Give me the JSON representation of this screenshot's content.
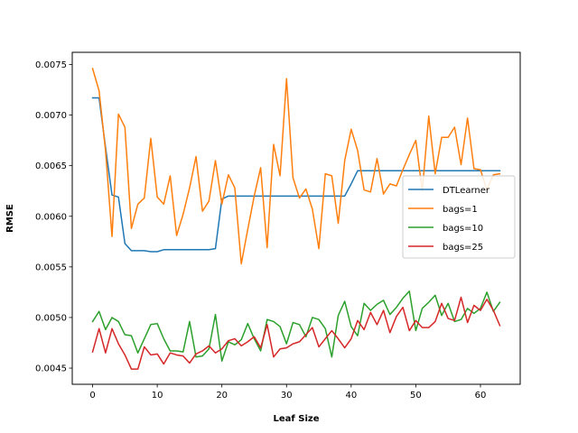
{
  "chart_data": {
    "type": "line",
    "title": "",
    "xlabel": "Leaf Size",
    "ylabel": "RMSE",
    "xlim": [
      -3.15,
      66.15
    ],
    "ylim": [
      0.00434,
      0.00762
    ],
    "xticks": [
      0,
      10,
      20,
      30,
      40,
      50,
      60
    ],
    "yticks": [
      0.0045,
      0.005,
      0.0055,
      0.006,
      0.0065,
      0.007,
      0.0075
    ],
    "ytick_labels": [
      "0.0045",
      "0.0050",
      "0.0055",
      "0.0060",
      "0.0065",
      "0.0070",
      "0.0075"
    ],
    "grid": false,
    "legend_position": "center-right",
    "x": [
      0,
      1,
      2,
      3,
      4,
      5,
      6,
      7,
      8,
      9,
      10,
      11,
      12,
      13,
      14,
      15,
      16,
      17,
      18,
      19,
      20,
      21,
      22,
      23,
      24,
      25,
      26,
      27,
      28,
      29,
      30,
      31,
      32,
      33,
      34,
      35,
      36,
      37,
      38,
      39,
      40,
      41,
      42,
      43,
      44,
      45,
      46,
      47,
      48,
      49,
      50,
      51,
      52,
      53,
      54,
      55,
      56,
      57,
      58,
      59,
      60,
      61,
      62,
      63
    ],
    "series": [
      {
        "name": "DTLearner",
        "color": "#1f77b4",
        "values": [
          0.00717,
          0.00717,
          0.00668,
          0.00621,
          0.00619,
          0.00573,
          0.00566,
          0.00566,
          0.00566,
          0.00565,
          0.00565,
          0.00567,
          0.00567,
          0.00567,
          0.00567,
          0.00567,
          0.00567,
          0.00567,
          0.00567,
          0.00568,
          0.00617,
          0.0062,
          0.0062,
          0.0062,
          0.0062,
          0.0062,
          0.0062,
          0.0062,
          0.0062,
          0.0062,
          0.0062,
          0.0062,
          0.0062,
          0.0062,
          0.0062,
          0.0062,
          0.0062,
          0.0062,
          0.0062,
          0.0062,
          0.00632,
          0.00645,
          0.00645,
          0.00645,
          0.00645,
          0.00645,
          0.00645,
          0.00645,
          0.00645,
          0.00645,
          0.00645,
          0.00645,
          0.00645,
          0.00645,
          0.00645,
          0.00645,
          0.00645,
          0.00645,
          0.00645,
          0.00645,
          0.00645,
          0.00645,
          0.00645,
          0.00645
        ]
      },
      {
        "name": "bags=1",
        "color": "#ff7f0e",
        "values": [
          0.00746,
          0.00724,
          0.00665,
          0.0058,
          0.00701,
          0.00688,
          0.00588,
          0.00612,
          0.00618,
          0.00677,
          0.00619,
          0.00612,
          0.0064,
          0.00581,
          0.00602,
          0.00628,
          0.00659,
          0.00605,
          0.00615,
          0.00655,
          0.00612,
          0.00641,
          0.00628,
          0.00553,
          0.00587,
          0.0062,
          0.00648,
          0.00569,
          0.00671,
          0.0064,
          0.00736,
          0.00638,
          0.00618,
          0.00627,
          0.00607,
          0.00568,
          0.00642,
          0.0064,
          0.00593,
          0.00655,
          0.00686,
          0.00665,
          0.00626,
          0.00624,
          0.00657,
          0.00622,
          0.00632,
          0.0063,
          0.00646,
          0.00661,
          0.00675,
          0.00625,
          0.00699,
          0.00642,
          0.00678,
          0.00678,
          0.00688,
          0.00651,
          0.00697,
          0.00647,
          0.00646,
          0.00626,
          0.00641,
          0.00642
        ]
      },
      {
        "name": "bags=10",
        "color": "#2ca02c",
        "values": [
          0.00496,
          0.00506,
          0.00488,
          0.005,
          0.00496,
          0.00483,
          0.00482,
          0.00465,
          0.00479,
          0.00493,
          0.00494,
          0.00479,
          0.00467,
          0.00467,
          0.00466,
          0.00496,
          0.00461,
          0.00462,
          0.00469,
          0.00503,
          0.00457,
          0.00476,
          0.00473,
          0.00478,
          0.00494,
          0.00479,
          0.00467,
          0.00498,
          0.00496,
          0.00491,
          0.00474,
          0.00495,
          0.00493,
          0.00481,
          0.005,
          0.00498,
          0.00489,
          0.00461,
          0.00502,
          0.00516,
          0.00491,
          0.00482,
          0.00514,
          0.00507,
          0.00513,
          0.00517,
          0.00503,
          0.0051,
          0.00519,
          0.00526,
          0.00487,
          0.00509,
          0.00515,
          0.00522,
          0.00502,
          0.00514,
          0.00496,
          0.00498,
          0.00509,
          0.00504,
          0.00509,
          0.00525,
          0.00506,
          0.00515
        ]
      },
      {
        "name": "bags=25",
        "color": "#d62728",
        "values": [
          0.00466,
          0.00489,
          0.00465,
          0.00489,
          0.00474,
          0.00463,
          0.00449,
          0.00449,
          0.00471,
          0.00463,
          0.00464,
          0.00454,
          0.00465,
          0.00463,
          0.00462,
          0.00455,
          0.00464,
          0.00467,
          0.00472,
          0.00465,
          0.00469,
          0.00477,
          0.00479,
          0.00472,
          0.00476,
          0.00481,
          0.0047,
          0.00493,
          0.00461,
          0.00469,
          0.0047,
          0.00474,
          0.00476,
          0.00483,
          0.0049,
          0.00471,
          0.00479,
          0.00487,
          0.00479,
          0.0047,
          0.00479,
          0.00497,
          0.00488,
          0.00505,
          0.00493,
          0.00507,
          0.00485,
          0.00501,
          0.0051,
          0.00487,
          0.00497,
          0.0049,
          0.0049,
          0.00496,
          0.00514,
          0.00499,
          0.00497,
          0.0052,
          0.00495,
          0.00512,
          0.00507,
          0.00518,
          0.00507,
          0.00492
        ]
      }
    ]
  }
}
